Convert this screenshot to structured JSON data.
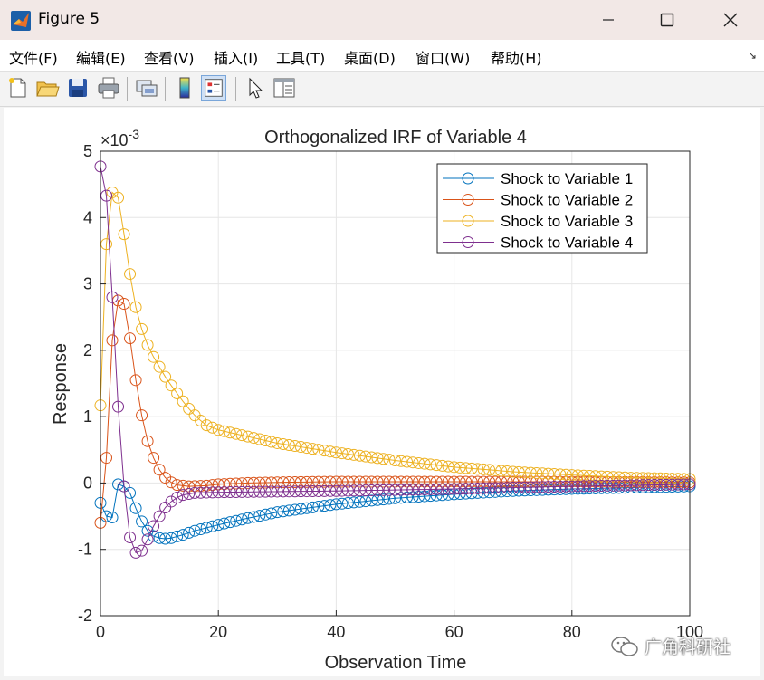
{
  "window": {
    "title": "Figure 5",
    "controls": [
      "minimize",
      "maximize",
      "close"
    ]
  },
  "menu": {
    "items": [
      "文件(F)",
      "编辑(E)",
      "查看(V)",
      "插入(I)",
      "工具(T)",
      "桌面(D)",
      "窗口(W)",
      "帮助(H)"
    ],
    "corner": "↘"
  },
  "toolbar": {
    "buttons": [
      "new-figure-icon",
      "open-icon",
      "save-icon",
      "print-icon",
      "link-icon",
      "colorbar-icon",
      "legend-icon",
      "pointer-icon",
      "property-inspector-icon"
    ]
  },
  "watermark": {
    "text": "广角科研社"
  },
  "chart_data": {
    "type": "line",
    "title": "Orthogonalized IRF of Variable 4",
    "xlabel": "Observation Time",
    "ylabel": "Response",
    "exponent_label": "×10",
    "exponent_power": "-3",
    "xlim": [
      0,
      100
    ],
    "ylim": [
      -2,
      5
    ],
    "xticks": [
      0,
      20,
      40,
      60,
      80,
      100
    ],
    "yticks": [
      -2,
      -1,
      0,
      1,
      2,
      3,
      4,
      5
    ],
    "grid": true,
    "legend_position": "top-right",
    "marker": "circle",
    "series": [
      {
        "name": "Shock to Variable 1",
        "color": "#0072BD",
        "anchors": [
          [
            0,
            -0.3
          ],
          [
            1,
            -0.5
          ],
          [
            2,
            -0.52
          ],
          [
            3,
            -0.02
          ],
          [
            4,
            -0.05
          ],
          [
            5,
            -0.15
          ],
          [
            6,
            -0.38
          ],
          [
            7,
            -0.58
          ],
          [
            8,
            -0.72
          ],
          [
            9,
            -0.8
          ],
          [
            10,
            -0.83
          ],
          [
            11,
            -0.84
          ],
          [
            12,
            -0.83
          ],
          [
            14,
            -0.78
          ],
          [
            16,
            -0.72
          ],
          [
            20,
            -0.63
          ],
          [
            25,
            -0.53
          ],
          [
            30,
            -0.44
          ],
          [
            40,
            -0.32
          ],
          [
            50,
            -0.23
          ],
          [
            60,
            -0.17
          ],
          [
            70,
            -0.12
          ],
          [
            80,
            -0.09
          ],
          [
            90,
            -0.07
          ],
          [
            100,
            -0.05
          ]
        ]
      },
      {
        "name": "Shock to Variable 2",
        "color": "#D95319",
        "anchors": [
          [
            0,
            -0.6
          ],
          [
            1,
            0.38
          ],
          [
            2,
            2.15
          ],
          [
            3,
            2.75
          ],
          [
            4,
            2.7
          ],
          [
            5,
            2.18
          ],
          [
            6,
            1.55
          ],
          [
            7,
            1.02
          ],
          [
            8,
            0.63
          ],
          [
            9,
            0.38
          ],
          [
            10,
            0.2
          ],
          [
            11,
            0.08
          ],
          [
            12,
            0.01
          ],
          [
            13,
            -0.03
          ],
          [
            15,
            -0.05
          ],
          [
            18,
            -0.04
          ],
          [
            20,
            -0.02
          ],
          [
            25,
            0.0
          ],
          [
            30,
            0.01
          ],
          [
            40,
            0.02
          ],
          [
            60,
            0.02
          ],
          [
            80,
            0.02
          ],
          [
            100,
            0.01
          ]
        ]
      },
      {
        "name": "Shock to Variable 3",
        "color": "#EDB120",
        "anchors": [
          [
            0,
            1.17
          ],
          [
            1,
            3.6
          ],
          [
            2,
            4.38
          ],
          [
            3,
            4.3
          ],
          [
            4,
            3.75
          ],
          [
            5,
            3.15
          ],
          [
            6,
            2.65
          ],
          [
            7,
            2.32
          ],
          [
            8,
            2.08
          ],
          [
            9,
            1.9
          ],
          [
            10,
            1.75
          ],
          [
            11,
            1.6
          ],
          [
            12,
            1.47
          ],
          [
            13,
            1.35
          ],
          [
            14,
            1.23
          ],
          [
            15,
            1.12
          ],
          [
            16,
            1.02
          ],
          [
            17,
            0.94
          ],
          [
            18,
            0.87
          ],
          [
            20,
            0.8
          ],
          [
            25,
            0.7
          ],
          [
            30,
            0.6
          ],
          [
            40,
            0.46
          ],
          [
            50,
            0.34
          ],
          [
            60,
            0.24
          ],
          [
            70,
            0.17
          ],
          [
            80,
            0.12
          ],
          [
            90,
            0.08
          ],
          [
            100,
            0.06
          ]
        ]
      },
      {
        "name": "Shock to Variable 4",
        "color": "#7E2F8E",
        "anchors": [
          [
            0,
            4.77
          ],
          [
            1,
            4.33
          ],
          [
            2,
            2.8
          ],
          [
            3,
            1.15
          ],
          [
            4,
            -0.05
          ],
          [
            5,
            -0.82
          ],
          [
            6,
            -1.05
          ],
          [
            7,
            -1.02
          ],
          [
            8,
            -0.85
          ],
          [
            9,
            -0.65
          ],
          [
            10,
            -0.5
          ],
          [
            11,
            -0.37
          ],
          [
            12,
            -0.28
          ],
          [
            13,
            -0.22
          ],
          [
            14,
            -0.18
          ],
          [
            16,
            -0.15
          ],
          [
            20,
            -0.14
          ],
          [
            30,
            -0.13
          ],
          [
            40,
            -0.12
          ],
          [
            60,
            -0.09
          ],
          [
            80,
            -0.05
          ],
          [
            100,
            -0.02
          ]
        ]
      }
    ]
  }
}
